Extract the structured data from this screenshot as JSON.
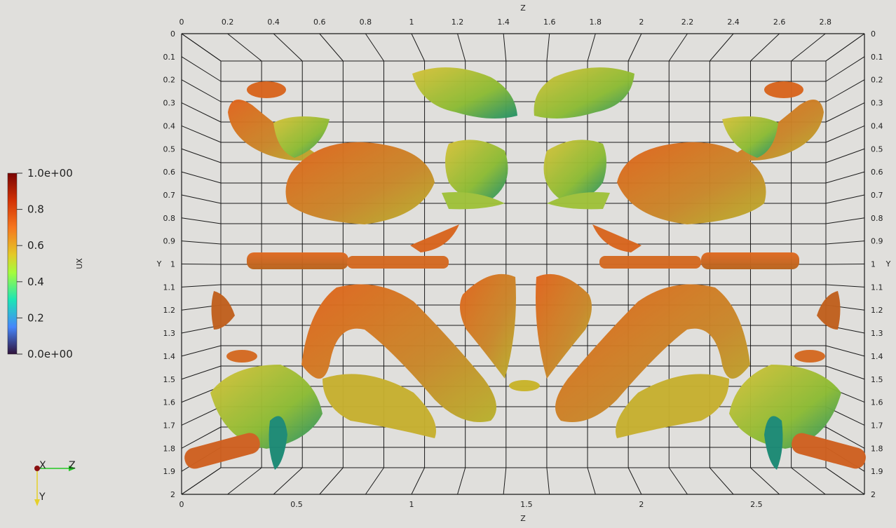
{
  "axes": {
    "top_title": "Z",
    "bottom_title": "Z",
    "left_title": "Y",
    "right_title": "Y",
    "top_ticks": [
      "0",
      "0.2",
      "0.4",
      "0.6",
      "0.8",
      "1",
      "1.2",
      "1.4",
      "1.6",
      "1.8",
      "2",
      "2.2",
      "2.4",
      "2.6",
      "2.8"
    ],
    "bottom_ticks": [
      "0",
      "0.5",
      "1",
      "1.5",
      "2",
      "2.5"
    ],
    "y_ticks": [
      "0",
      "0.1",
      "0.2",
      "0.3",
      "0.4",
      "0.5",
      "0.6",
      "0.7",
      "0.8",
      "0.9",
      "1",
      "1.1",
      "1.2",
      "1.3",
      "1.4",
      "1.5",
      "1.6",
      "1.7",
      "1.8",
      "1.9",
      "2"
    ]
  },
  "colorbar": {
    "title": "UX",
    "labels": [
      "1.0e+00",
      "0.8",
      "0.6",
      "0.4",
      "0.2",
      "0.0e+00"
    ]
  },
  "orientation": {
    "x_label": "X",
    "y_label": "Y",
    "z_label": "Z"
  },
  "colors": {
    "background": "#e0dfdc",
    "orange": "#d9641e",
    "yellow": "#c9b42a",
    "green": "#3aa33a",
    "teal": "#1b8a74"
  }
}
